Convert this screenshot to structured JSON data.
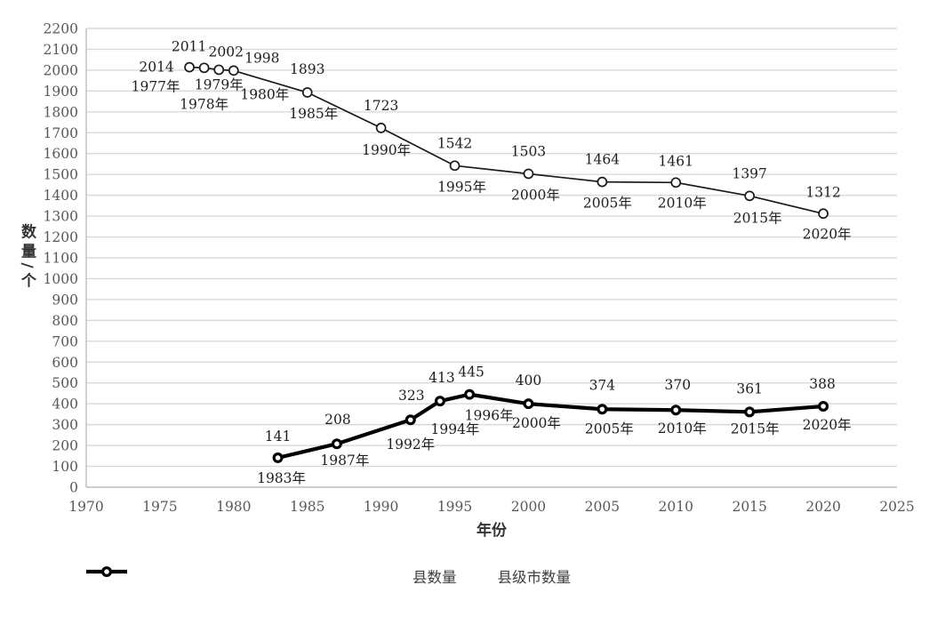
{
  "chart_data": {
    "type": "line",
    "title": "",
    "xlabel": "年份",
    "ylabel": "数量/个",
    "xlim": [
      1970,
      2025
    ],
    "ylim": [
      0,
      2200
    ],
    "x_ticks": [
      1970,
      1975,
      1980,
      1985,
      1990,
      1995,
      2000,
      2005,
      2010,
      2015,
      2020,
      2025
    ],
    "y_ticks": [
      0,
      100,
      200,
      300,
      400,
      500,
      600,
      700,
      800,
      900,
      1000,
      1100,
      1200,
      1300,
      1400,
      1500,
      1600,
      1700,
      1800,
      1900,
      2000,
      2100,
      2200
    ],
    "grid": "horizontal-only",
    "legend_position": "bottom-center",
    "series": [
      {
        "name": "县数量",
        "line_weight": "thin",
        "marker": "open-circle",
        "points": [
          {
            "year": 1977,
            "value": 2014,
            "value_label": "2014",
            "year_label": "1977年"
          },
          {
            "year": 1978,
            "value": 2011,
            "value_label": "2011",
            "year_label": "1978年"
          },
          {
            "year": 1979,
            "value": 2002,
            "value_label": "2002",
            "year_label": "1979年"
          },
          {
            "year": 1980,
            "value": 1998,
            "value_label": "1998",
            "year_label": "1980年"
          },
          {
            "year": 1985,
            "value": 1893,
            "value_label": "1893",
            "year_label": "1985年"
          },
          {
            "year": 1990,
            "value": 1723,
            "value_label": "1723",
            "year_label": "1990年"
          },
          {
            "year": 1995,
            "value": 1542,
            "value_label": "1542",
            "year_label": "1995年"
          },
          {
            "year": 2000,
            "value": 1503,
            "value_label": "1503",
            "year_label": "2000年"
          },
          {
            "year": 2005,
            "value": 1464,
            "value_label": "1464",
            "year_label": "2005年"
          },
          {
            "year": 2010,
            "value": 1461,
            "value_label": "1461",
            "year_label": "2010年"
          },
          {
            "year": 2015,
            "value": 1397,
            "value_label": "1397",
            "year_label": "2015年"
          },
          {
            "year": 2020,
            "value": 1312,
            "value_label": "1312",
            "year_label": "2020年"
          }
        ]
      },
      {
        "name": "县级市数量",
        "line_weight": "thick",
        "marker": "open-circle",
        "points": [
          {
            "year": 1983,
            "value": 141,
            "value_label": "141",
            "year_label": "1983年"
          },
          {
            "year": 1987,
            "value": 208,
            "value_label": "208",
            "year_label": "1987年"
          },
          {
            "year": 1992,
            "value": 323,
            "value_label": "323",
            "year_label": "1992年"
          },
          {
            "year": 1994,
            "value": 413,
            "value_label": "413",
            "year_label": "1994年"
          },
          {
            "year": 1996,
            "value": 445,
            "value_label": "445",
            "year_label": "1996年"
          },
          {
            "year": 2000,
            "value": 400,
            "value_label": "400",
            "year_label": "2000年"
          },
          {
            "year": 2005,
            "value": 374,
            "value_label": "374",
            "year_label": "2005年"
          },
          {
            "year": 2010,
            "value": 370,
            "value_label": "370",
            "year_label": "2010年"
          },
          {
            "year": 2015,
            "value": 361,
            "value_label": "361",
            "year_label": "2015年"
          },
          {
            "year": 2020,
            "value": 388,
            "value_label": "388",
            "year_label": "2020年"
          }
        ]
      }
    ]
  },
  "colors": {
    "background": "#ffffff",
    "grid": "#d9d9d9",
    "axis": "#bfbfbf",
    "tick_text": "#595959",
    "data_label_text": "#1f1f1f",
    "series_thin_line": "#1a1a1a",
    "series_thick_line": "#000000",
    "legend_text": "#3f3f3f",
    "axis_title_text": "#333333"
  }
}
